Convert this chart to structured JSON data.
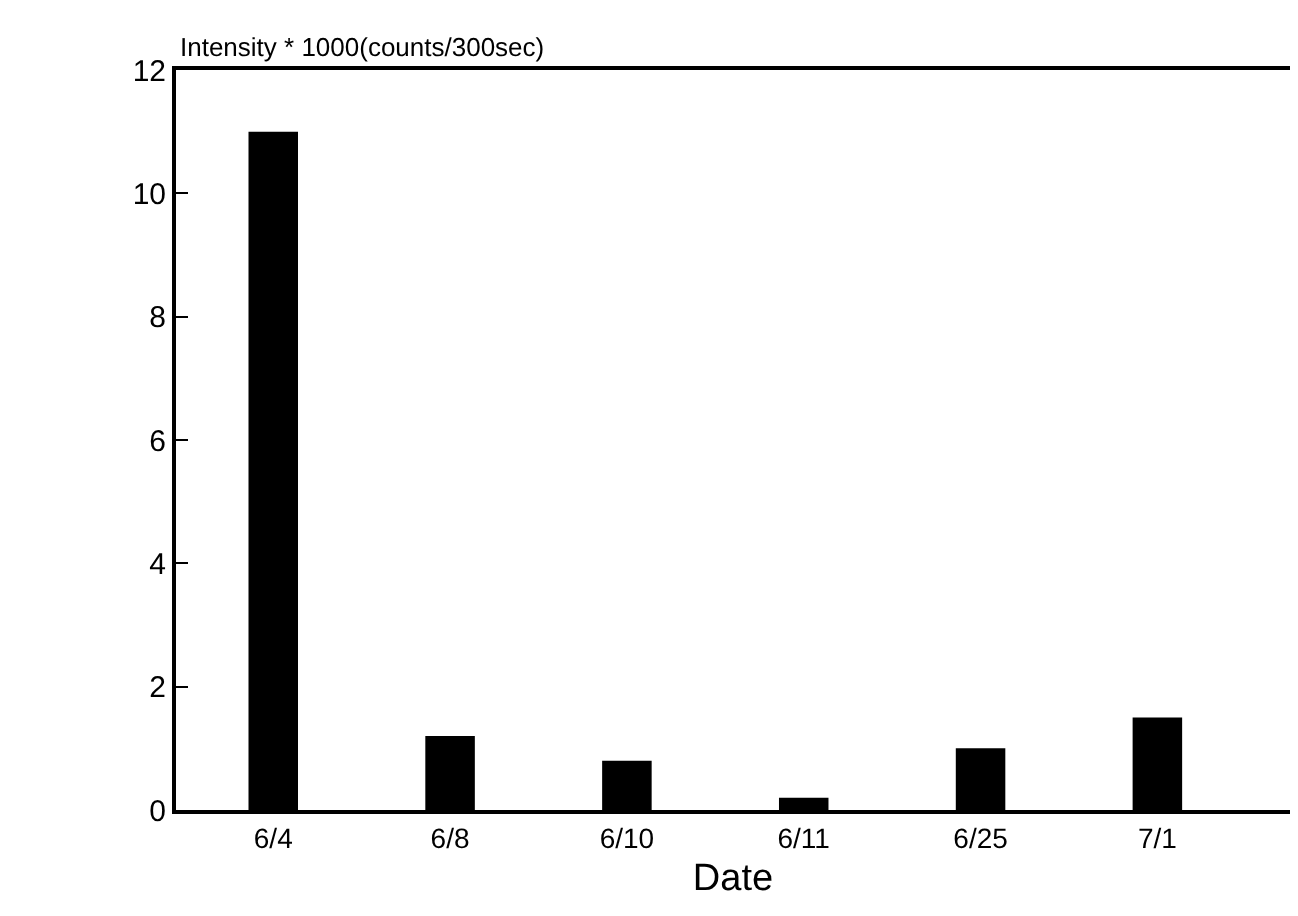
{
  "chart_data": {
    "type": "bar",
    "ylabel": "Intensity * 1000(counts/300sec)",
    "xlabel": "Date",
    "categories": [
      "6/4",
      "6/8",
      "6/10",
      "6/11",
      "6/25",
      "7/1"
    ],
    "values": [
      11.0,
      1.2,
      0.8,
      0.2,
      1.0,
      1.5
    ],
    "color": "#000000",
    "ylim": [
      0,
      12
    ],
    "yticks": [
      0,
      2,
      4,
      6,
      8,
      10,
      12
    ],
    "legend": false
  }
}
